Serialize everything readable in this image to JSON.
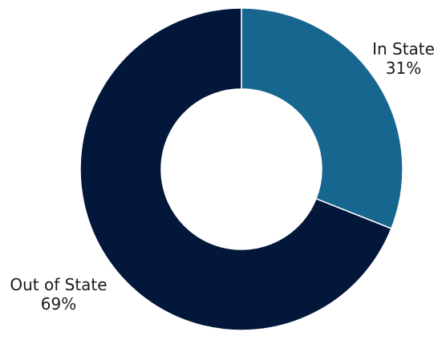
{
  "chart_data": {
    "type": "pie",
    "variant": "donut",
    "slices": [
      {
        "label": "In State",
        "value": 31,
        "value_label": "31%",
        "color": "#17668f"
      },
      {
        "label": "Out of State",
        "value": 69,
        "value_label": "69%",
        "color": "#02173a"
      }
    ],
    "title": "",
    "legend": "none",
    "start_angle": "12 o'clock",
    "direction": "clockwise"
  }
}
